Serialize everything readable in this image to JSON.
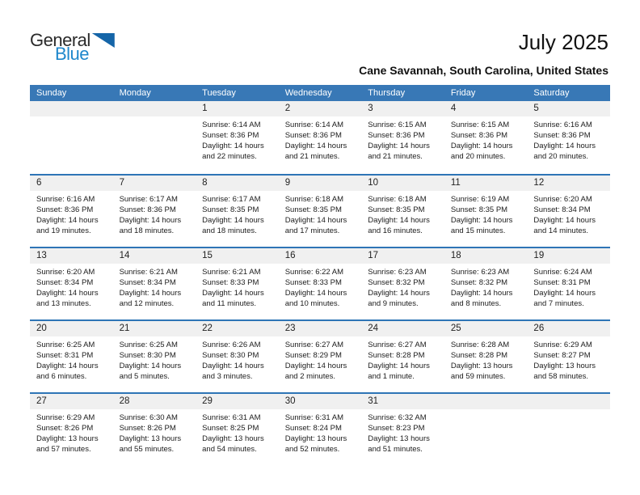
{
  "logo": {
    "text_top": "General",
    "text_bottom": "Blue"
  },
  "header": {
    "title": "July 2025",
    "subtitle": "Cane Savannah, South Carolina, United States"
  },
  "colors": {
    "header_bar": "#3878b6",
    "row_divider": "#2e75b6",
    "day_strip": "#f0f0f0",
    "logo_blue": "#1e87cc",
    "logo_triangle": "#1565a8"
  },
  "calendar": {
    "weekday_headers": [
      "Sunday",
      "Monday",
      "Tuesday",
      "Wednesday",
      "Thursday",
      "Friday",
      "Saturday"
    ],
    "weeks": [
      [
        null,
        null,
        {
          "day": "1",
          "lines": [
            "Sunrise: 6:14 AM",
            "Sunset: 8:36 PM",
            "Daylight: 14 hours",
            "and 22 minutes."
          ]
        },
        {
          "day": "2",
          "lines": [
            "Sunrise: 6:14 AM",
            "Sunset: 8:36 PM",
            "Daylight: 14 hours",
            "and 21 minutes."
          ]
        },
        {
          "day": "3",
          "lines": [
            "Sunrise: 6:15 AM",
            "Sunset: 8:36 PM",
            "Daylight: 14 hours",
            "and 21 minutes."
          ]
        },
        {
          "day": "4",
          "lines": [
            "Sunrise: 6:15 AM",
            "Sunset: 8:36 PM",
            "Daylight: 14 hours",
            "and 20 minutes."
          ]
        },
        {
          "day": "5",
          "lines": [
            "Sunrise: 6:16 AM",
            "Sunset: 8:36 PM",
            "Daylight: 14 hours",
            "and 20 minutes."
          ]
        }
      ],
      [
        {
          "day": "6",
          "lines": [
            "Sunrise: 6:16 AM",
            "Sunset: 8:36 PM",
            "Daylight: 14 hours",
            "and 19 minutes."
          ]
        },
        {
          "day": "7",
          "lines": [
            "Sunrise: 6:17 AM",
            "Sunset: 8:36 PM",
            "Daylight: 14 hours",
            "and 18 minutes."
          ]
        },
        {
          "day": "8",
          "lines": [
            "Sunrise: 6:17 AM",
            "Sunset: 8:35 PM",
            "Daylight: 14 hours",
            "and 18 minutes."
          ]
        },
        {
          "day": "9",
          "lines": [
            "Sunrise: 6:18 AM",
            "Sunset: 8:35 PM",
            "Daylight: 14 hours",
            "and 17 minutes."
          ]
        },
        {
          "day": "10",
          "lines": [
            "Sunrise: 6:18 AM",
            "Sunset: 8:35 PM",
            "Daylight: 14 hours",
            "and 16 minutes."
          ]
        },
        {
          "day": "11",
          "lines": [
            "Sunrise: 6:19 AM",
            "Sunset: 8:35 PM",
            "Daylight: 14 hours",
            "and 15 minutes."
          ]
        },
        {
          "day": "12",
          "lines": [
            "Sunrise: 6:20 AM",
            "Sunset: 8:34 PM",
            "Daylight: 14 hours",
            "and 14 minutes."
          ]
        }
      ],
      [
        {
          "day": "13",
          "lines": [
            "Sunrise: 6:20 AM",
            "Sunset: 8:34 PM",
            "Daylight: 14 hours",
            "and 13 minutes."
          ]
        },
        {
          "day": "14",
          "lines": [
            "Sunrise: 6:21 AM",
            "Sunset: 8:34 PM",
            "Daylight: 14 hours",
            "and 12 minutes."
          ]
        },
        {
          "day": "15",
          "lines": [
            "Sunrise: 6:21 AM",
            "Sunset: 8:33 PM",
            "Daylight: 14 hours",
            "and 11 minutes."
          ]
        },
        {
          "day": "16",
          "lines": [
            "Sunrise: 6:22 AM",
            "Sunset: 8:33 PM",
            "Daylight: 14 hours",
            "and 10 minutes."
          ]
        },
        {
          "day": "17",
          "lines": [
            "Sunrise: 6:23 AM",
            "Sunset: 8:32 PM",
            "Daylight: 14 hours",
            "and 9 minutes."
          ]
        },
        {
          "day": "18",
          "lines": [
            "Sunrise: 6:23 AM",
            "Sunset: 8:32 PM",
            "Daylight: 14 hours",
            "and 8 minutes."
          ]
        },
        {
          "day": "19",
          "lines": [
            "Sunrise: 6:24 AM",
            "Sunset: 8:31 PM",
            "Daylight: 14 hours",
            "and 7 minutes."
          ]
        }
      ],
      [
        {
          "day": "20",
          "lines": [
            "Sunrise: 6:25 AM",
            "Sunset: 8:31 PM",
            "Daylight: 14 hours",
            "and 6 minutes."
          ]
        },
        {
          "day": "21",
          "lines": [
            "Sunrise: 6:25 AM",
            "Sunset: 8:30 PM",
            "Daylight: 14 hours",
            "and 5 minutes."
          ]
        },
        {
          "day": "22",
          "lines": [
            "Sunrise: 6:26 AM",
            "Sunset: 8:30 PM",
            "Daylight: 14 hours",
            "and 3 minutes."
          ]
        },
        {
          "day": "23",
          "lines": [
            "Sunrise: 6:27 AM",
            "Sunset: 8:29 PM",
            "Daylight: 14 hours",
            "and 2 minutes."
          ]
        },
        {
          "day": "24",
          "lines": [
            "Sunrise: 6:27 AM",
            "Sunset: 8:28 PM",
            "Daylight: 14 hours",
            "and 1 minute."
          ]
        },
        {
          "day": "25",
          "lines": [
            "Sunrise: 6:28 AM",
            "Sunset: 8:28 PM",
            "Daylight: 13 hours",
            "and 59 minutes."
          ]
        },
        {
          "day": "26",
          "lines": [
            "Sunrise: 6:29 AM",
            "Sunset: 8:27 PM",
            "Daylight: 13 hours",
            "and 58 minutes."
          ]
        }
      ],
      [
        {
          "day": "27",
          "lines": [
            "Sunrise: 6:29 AM",
            "Sunset: 8:26 PM",
            "Daylight: 13 hours",
            "and 57 minutes."
          ]
        },
        {
          "day": "28",
          "lines": [
            "Sunrise: 6:30 AM",
            "Sunset: 8:26 PM",
            "Daylight: 13 hours",
            "and 55 minutes."
          ]
        },
        {
          "day": "29",
          "lines": [
            "Sunrise: 6:31 AM",
            "Sunset: 8:25 PM",
            "Daylight: 13 hours",
            "and 54 minutes."
          ]
        },
        {
          "day": "30",
          "lines": [
            "Sunrise: 6:31 AM",
            "Sunset: 8:24 PM",
            "Daylight: 13 hours",
            "and 52 minutes."
          ]
        },
        {
          "day": "31",
          "lines": [
            "Sunrise: 6:32 AM",
            "Sunset: 8:23 PM",
            "Daylight: 13 hours",
            "and 51 minutes."
          ]
        },
        null,
        null
      ]
    ]
  }
}
